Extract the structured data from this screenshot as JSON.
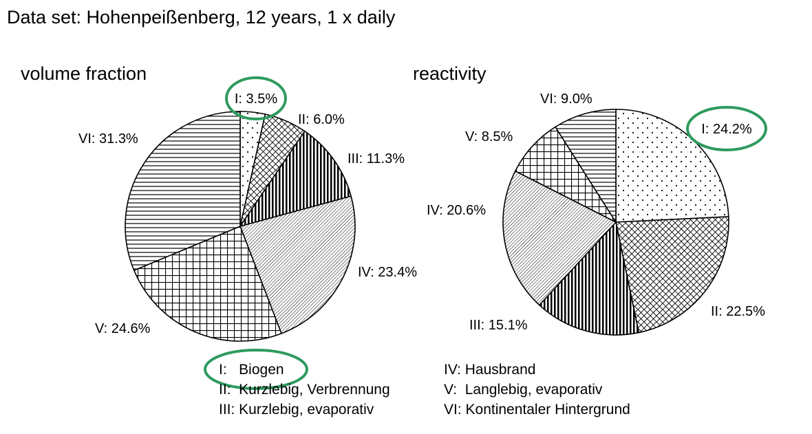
{
  "header": {
    "title": "Data set: Hohenpeißenberg, 12 years, 1 x daily"
  },
  "chart_data": [
    {
      "type": "pie",
      "title": "volume fraction",
      "categories": [
        "I",
        "II",
        "III",
        "IV",
        "V",
        "VI"
      ],
      "values": [
        3.5,
        6.0,
        11.3,
        23.4,
        24.6,
        31.3
      ],
      "labels": [
        "I: 3.5%",
        "II: 6.0%",
        "III: 11.3%",
        "IV: 23.4%",
        "V: 24.6%",
        "VI: 31.3%"
      ],
      "highlighted": [
        "I"
      ]
    },
    {
      "type": "pie",
      "title": "reactivity",
      "categories": [
        "I",
        "II",
        "III",
        "IV",
        "V",
        "VI"
      ],
      "values": [
        24.2,
        22.5,
        15.1,
        20.6,
        8.5,
        9.0
      ],
      "labels": [
        "I: 24.2%",
        "II: 22.5%",
        "III: 15.1%",
        "IV: 20.6%",
        "V: 8.5%",
        "VI: 9.0%"
      ],
      "highlighted": [
        "I"
      ]
    }
  ],
  "legend": {
    "left": [
      "I:   Biogen",
      "II:  Kurzlebig, Verbrennung",
      "III: Kurzlebig, evaporativ"
    ],
    "right": [
      "IV: Hausbrand",
      "V:  Langlebig, evaporativ",
      "VI: Kontinentaler Hintergrund"
    ]
  },
  "colors": {
    "highlight": "#2e9a5e",
    "stroke": "#000000",
    "background": "#ffffff"
  }
}
